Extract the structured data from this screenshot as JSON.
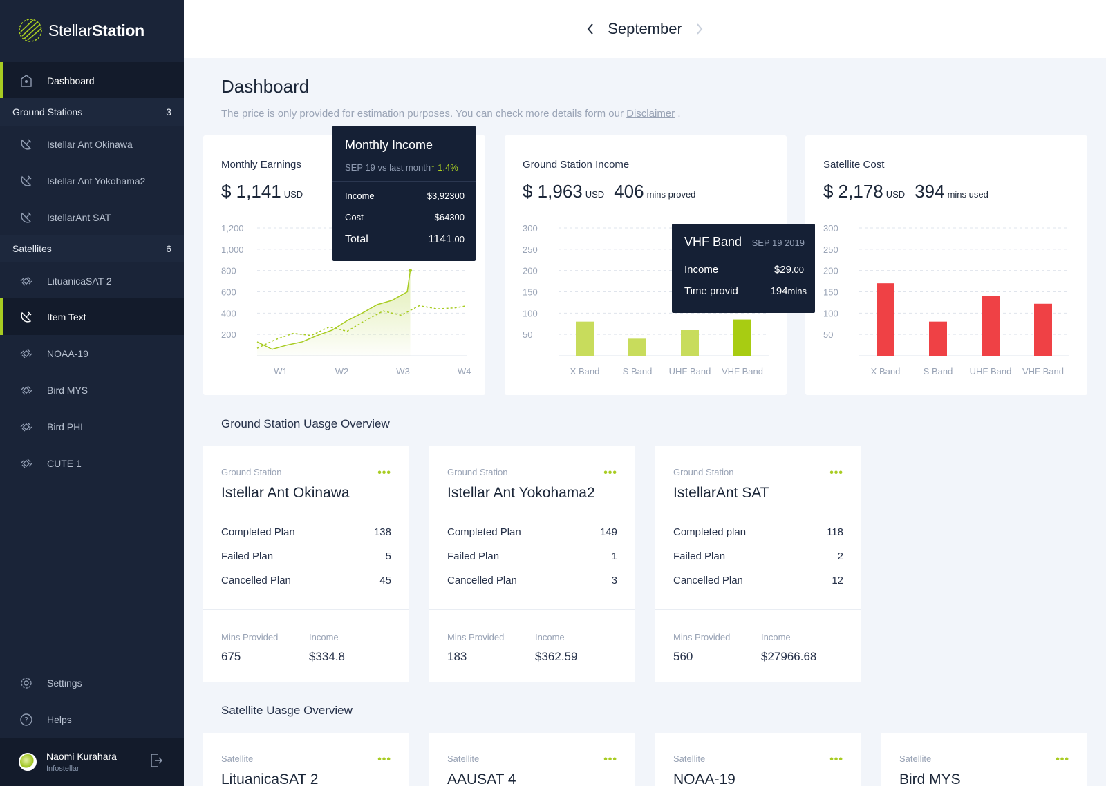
{
  "app": {
    "logo_bold": "Stellar",
    "logo_rest": "Station"
  },
  "topbar": {
    "month": "September",
    "prev_icon": "chevron-left-icon",
    "next_icon": "chevron-right-icon"
  },
  "sidebar": {
    "dashboard": "Dashboard",
    "ground_stations": {
      "label": "Ground Stations",
      "count": "3",
      "items": [
        "Istellar Ant Okinawa",
        "Istellar Ant Yokohama2",
        "IstellarAnt SAT"
      ]
    },
    "satellites": {
      "label": "Satellites",
      "count": "6",
      "items": [
        "LituanicaSAT 2",
        "Item Text",
        "NOAA-19",
        "Bird MYS",
        "Bird PHL",
        "CUTE 1"
      ]
    },
    "settings": "Settings",
    "helps": "Helps",
    "user": {
      "name": "Naomi Kurahara",
      "org": "Infostellar"
    }
  },
  "page": {
    "title": "Dashboard",
    "note": "The price is only provided for estimation purposes. You can check more details form our ",
    "note_link": "Disclaimer",
    "note_end": " ."
  },
  "earnings": {
    "title": "Monthly Earnings",
    "amount": "$ 1,141",
    "unit": "USD",
    "tooltip": {
      "title": "Monthly Income",
      "subtitle": "SEP 19 vs last month",
      "change": "↑ 1.4%",
      "income_label": "Income",
      "income_value": "$3,92300",
      "cost_label": "Cost",
      "cost_value": "$64300",
      "total_label": "Total",
      "total_value": "1141",
      "total_cents": ".00"
    }
  },
  "gs_income": {
    "title": "Ground Station Income",
    "amount": "$ 1,963",
    "unit": "USD",
    "mins": "406",
    "mins_label": "mins proved",
    "tooltip": {
      "title": "VHF Band",
      "date": "SEP 19 2019",
      "income_label": "Income",
      "income_value": "$29",
      "income_cents": ".00",
      "time_label": "Time provid",
      "time_value": "194",
      "time_unit": "mins"
    }
  },
  "sat_cost": {
    "title": "Satellite Cost",
    "amount": "$ 2,178",
    "unit": "USD",
    "mins": "394",
    "mins_label": "mins used"
  },
  "chart_data": [
    {
      "type": "line",
      "title": "Monthly Earnings",
      "x_ticks": [
        "W1",
        "W2",
        "W3",
        "W4"
      ],
      "y_ticks": [
        "200",
        "400",
        "600",
        "800",
        "1,000",
        "1,200"
      ],
      "ylim": [
        0,
        1200
      ],
      "series": [
        {
          "style": "solid",
          "color": "#a8cc22",
          "x": [
            0,
            0.25,
            0.5,
            0.75,
            1.0,
            1.25,
            1.5,
            1.75,
            2.0,
            2.25,
            2.5,
            2.55
          ],
          "values": [
            130,
            60,
            100,
            130,
            190,
            240,
            330,
            400,
            480,
            520,
            600,
            800
          ]
        },
        {
          "style": "dashed",
          "color": "#a8cc22",
          "x": [
            0,
            0.3,
            0.6,
            0.9,
            1.2,
            1.5,
            1.8,
            2.1,
            2.4,
            2.7,
            3.0,
            3.3,
            3.5
          ],
          "values": [
            70,
            150,
            210,
            190,
            270,
            230,
            330,
            420,
            380,
            470,
            440,
            450,
            470
          ]
        }
      ],
      "grid": true
    },
    {
      "type": "bar",
      "title": "Ground Station Income",
      "categories": [
        "X Band",
        "S Band",
        "UHF Band",
        "VHF Band"
      ],
      "values": [
        80,
        40,
        60,
        85
      ],
      "colors": [
        "#c8dc5c",
        "#c8dc5c",
        "#c8dc5c",
        "#a8cc12"
      ],
      "y_ticks": [
        "50",
        "100",
        "150",
        "200",
        "250",
        "300"
      ],
      "ylim": [
        0,
        300
      ],
      "grid": true
    },
    {
      "type": "bar",
      "title": "Satellite Cost",
      "categories": [
        "X Band",
        "S Band",
        "UHF Band",
        "VHF Band"
      ],
      "values": [
        170,
        80,
        140,
        122
      ],
      "colors": [
        "#ef4145",
        "#ef4145",
        "#ef4145",
        "#ef4145"
      ],
      "y_ticks": [
        "50",
        "100",
        "150",
        "200",
        "250",
        "300"
      ],
      "ylim": [
        0,
        300
      ],
      "grid": true
    }
  ],
  "gs_overview": {
    "title": "Ground Station Uasge Overview",
    "cards": [
      {
        "label": "Ground Station",
        "name": "Istellar Ant Okinawa",
        "rows": [
          [
            "Completed Plan",
            "138"
          ],
          [
            "Failed Plan",
            "5"
          ],
          [
            "Cancelled Plan",
            "45"
          ]
        ],
        "mins_label": "Mins Provided",
        "mins": "675",
        "income_label": "Income",
        "income": "$334.8"
      },
      {
        "label": "Ground Station",
        "name": "Istellar Ant Yokohama2",
        "rows": [
          [
            "Completed Plan",
            "149"
          ],
          [
            "Failed Plan",
            "1"
          ],
          [
            "Cancelled Plan",
            "3"
          ]
        ],
        "mins_label": "Mins Provided",
        "mins": "183",
        "income_label": "Income",
        "income": "$362.59"
      },
      {
        "label": "Ground Station",
        "name": "IstellarAnt SAT",
        "rows": [
          [
            "Completed plan",
            "118"
          ],
          [
            "Failed Plan",
            "2"
          ],
          [
            "Cancelled Plan",
            "12"
          ]
        ],
        "mins_label": "Mins Provided",
        "mins": "560",
        "income_label": "Income",
        "income": "$27966.68"
      }
    ]
  },
  "sat_overview": {
    "title": "Satellite Uasge Overview",
    "cards": [
      {
        "label": "Satellite",
        "name": "LituanicaSAT 2"
      },
      {
        "label": "Satellite",
        "name": "AAUSAT 4"
      },
      {
        "label": "Satellite",
        "name": "NOAA-19"
      },
      {
        "label": "Satellite",
        "name": "Bird MYS"
      }
    ]
  },
  "menu_dots": "•••"
}
